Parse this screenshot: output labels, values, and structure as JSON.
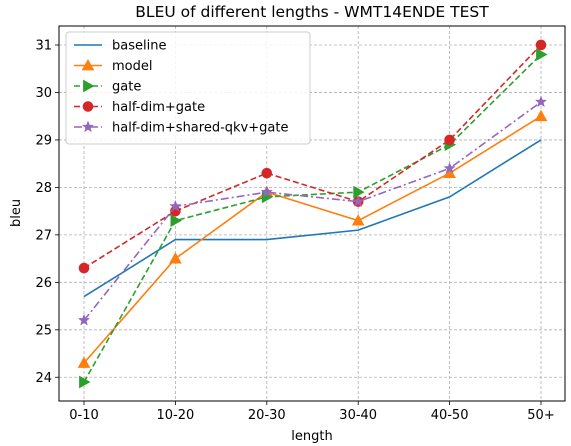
{
  "chart_data": {
    "type": "line",
    "title": "BLEU of different lengths - WMT14ENDE TEST",
    "xlabel": "length",
    "ylabel": "bleu",
    "categories": [
      "0-10",
      "10-20",
      "20-30",
      "30-40",
      "40-50",
      "50+"
    ],
    "ylim": [
      23.5,
      31.4
    ],
    "yticks": [
      24,
      25,
      26,
      27,
      28,
      29,
      30,
      31
    ],
    "grid": true,
    "legend_position": "top-left",
    "series": [
      {
        "name": "baseline",
        "values": [
          25.7,
          26.9,
          26.9,
          27.1,
          27.8,
          29.0
        ],
        "color": "#1f77b4",
        "dash": "solid",
        "marker": "none"
      },
      {
        "name": "model",
        "values": [
          24.3,
          26.5,
          27.9,
          27.3,
          28.3,
          29.5
        ],
        "color": "#ff7f0e",
        "dash": "solid",
        "marker": "triangle-up"
      },
      {
        "name": "gate",
        "values": [
          23.9,
          27.3,
          27.8,
          27.9,
          28.9,
          30.8
        ],
        "color": "#2ca02c",
        "dash": "dashed",
        "marker": "triangle-right"
      },
      {
        "name": "half-dim+gate",
        "values": [
          26.3,
          27.5,
          28.3,
          27.7,
          29.0,
          31.0
        ],
        "color": "#d62728",
        "dash": "dashed",
        "marker": "circle"
      },
      {
        "name": "half-dim+shared-qkv+gate",
        "values": [
          25.2,
          27.6,
          27.9,
          27.7,
          28.4,
          29.8
        ],
        "color": "#9467bd",
        "dash": "dashdot",
        "marker": "star"
      }
    ]
  }
}
